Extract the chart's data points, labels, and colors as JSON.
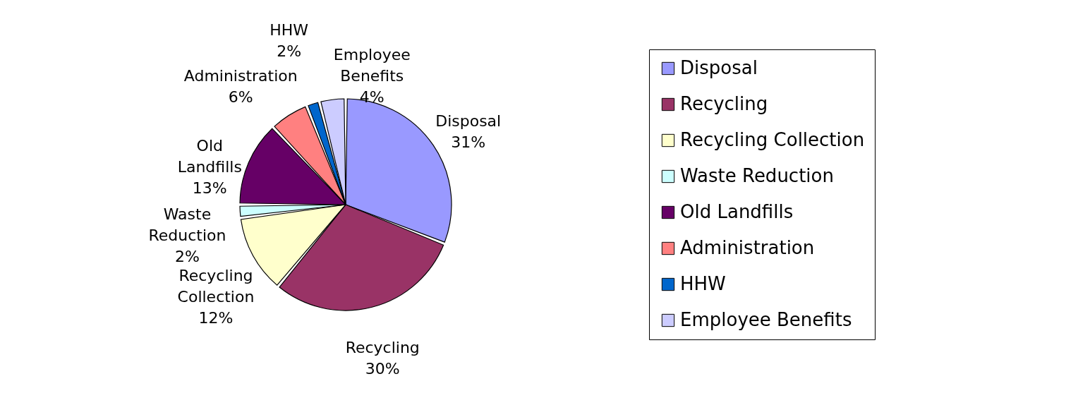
{
  "chart_data": {
    "type": "pie",
    "categories": [
      "Disposal",
      "Recycling",
      "Recycling Collection",
      "Waste Reduction",
      "Old Landfills",
      "Administration",
      "HHW",
      "Employee Benefits"
    ],
    "values": [
      31,
      30,
      12,
      2,
      13,
      6,
      2,
      4
    ],
    "value_labels": [
      "31%",
      "30%",
      "12%",
      "2%",
      "13%",
      "6%",
      "2%",
      "4%"
    ],
    "colors": [
      "#9999ff",
      "#993366",
      "#ffffcc",
      "#ccffff",
      "#660066",
      "#ff8080",
      "#0066cc",
      "#ccccff"
    ],
    "legend": "right"
  }
}
